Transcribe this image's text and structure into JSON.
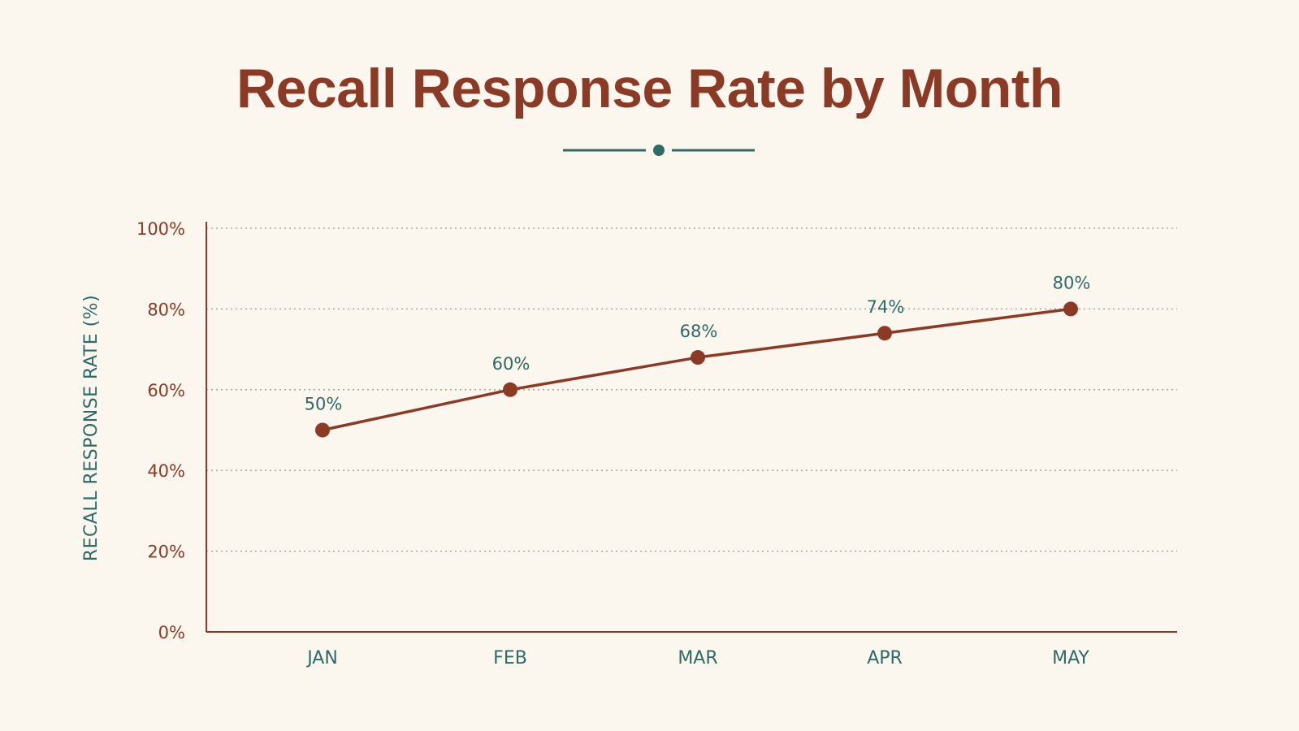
{
  "colors": {
    "background": "#FBF6EE",
    "title": "#8B3A25",
    "line": "#8B3A25",
    "accent": "#2E6B66",
    "grid": "#9A9A9A"
  },
  "chart_data": {
    "type": "line",
    "title": "Recall Response Rate by Month",
    "xlabel": "",
    "ylabel": "RECALL RESPONSE RATE (%)",
    "categories": [
      "JAN",
      "FEB",
      "MAR",
      "APR",
      "MAY"
    ],
    "series": [
      {
        "values": [
          50,
          60,
          68,
          74,
          80
        ],
        "data_labels": [
          "50%",
          "60%",
          "68%",
          "74%",
          "80%"
        ]
      }
    ],
    "ylim": [
      0,
      100
    ],
    "yticks": [
      0,
      20,
      40,
      60,
      80,
      100
    ],
    "ytick_labels": [
      "0%",
      "20%",
      "40%",
      "60%",
      "80%",
      "100%"
    ],
    "grid": "horizontal dotted",
    "legend": "none"
  }
}
